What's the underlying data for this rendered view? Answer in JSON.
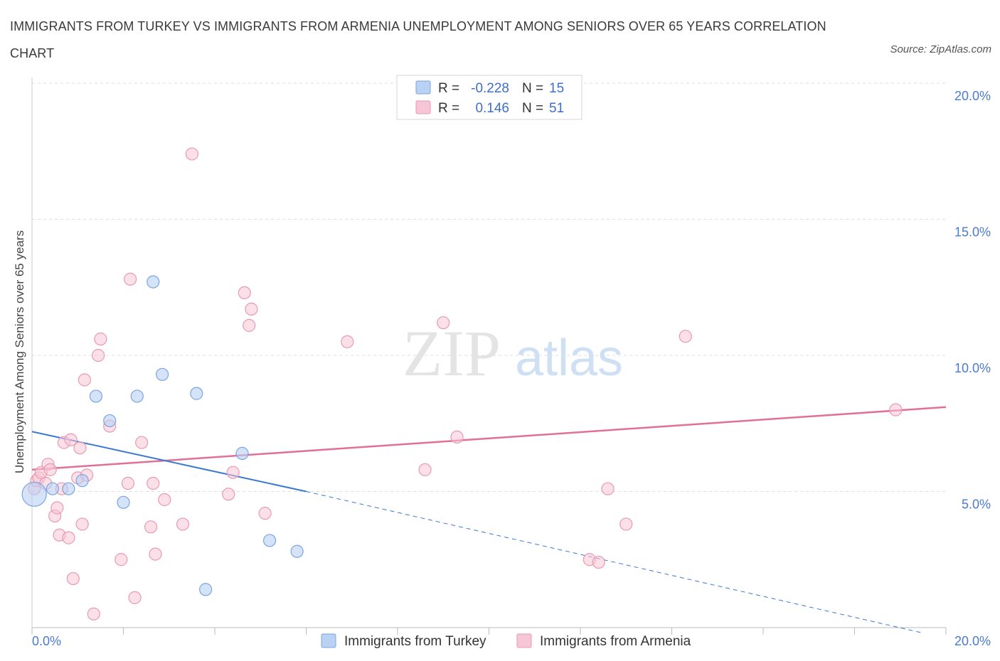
{
  "title": "IMMIGRANTS FROM TURKEY VS IMMIGRANTS FROM ARMENIA UNEMPLOYMENT AMONG SENIORS OVER 65 YEARS CORRELATION CHART",
  "source": "Source: ZipAtlas.com",
  "watermark": {
    "zip": "ZIP",
    "atlas": "atlas"
  },
  "legend_top": [
    {
      "r_label": "R =",
      "r_value": "-0.228",
      "n_label": "N =",
      "n_value": "15"
    },
    {
      "r_label": "R =",
      "r_value": "0.146",
      "n_label": "N =",
      "n_value": "51"
    }
  ],
  "legend_bottom": [
    "Immigrants from Turkey",
    "Immigrants from Armenia"
  ],
  "colors": {
    "turkey_fill": "#b9d1f3",
    "turkey_stroke": "#7aa5e0",
    "turkey_line": "#3b78d0",
    "armenia_fill": "#f7c6d6",
    "armenia_stroke": "#e79ab4",
    "armenia_line": "#e07097",
    "axis_label": "#4a7bd0",
    "grid": "#dddddd"
  },
  "chart_data": {
    "type": "scatter",
    "title": "IMMIGRANTS FROM TURKEY VS IMMIGRANTS FROM ARMENIA UNEMPLOYMENT AMONG SENIORS OVER 65 YEARS CORRELATION CHART",
    "xlabel": "",
    "ylabel": "Unemployment Among Seniors over 65 years",
    "xlim": [
      0,
      20
    ],
    "ylim": [
      0,
      20
    ],
    "x_tick_labels": [
      "0.0%",
      "20.0%"
    ],
    "y_ticks": [
      5,
      10,
      15,
      20
    ],
    "y_tick_labels": [
      "5.0%",
      "10.0%",
      "15.0%",
      "20.0%"
    ],
    "series": [
      {
        "name": "Immigrants from Turkey",
        "R": -0.228,
        "N": 15,
        "trend": {
          "x0": 0,
          "y0": 7.2,
          "x1": 6.0,
          "y1": 5.0,
          "dash_to_x": 19.5,
          "dash_to_y": -0.2
        },
        "points": [
          {
            "x": 0.05,
            "y": 4.9,
            "big": true
          },
          {
            "x": 0.45,
            "y": 5.1
          },
          {
            "x": 0.8,
            "y": 5.1
          },
          {
            "x": 1.1,
            "y": 5.4
          },
          {
            "x": 1.4,
            "y": 8.5
          },
          {
            "x": 1.7,
            "y": 7.6
          },
          {
            "x": 2.0,
            "y": 4.6
          },
          {
            "x": 2.3,
            "y": 8.5
          },
          {
            "x": 2.65,
            "y": 12.7
          },
          {
            "x": 2.85,
            "y": 9.3
          },
          {
            "x": 3.6,
            "y": 8.6
          },
          {
            "x": 3.8,
            "y": 1.4
          },
          {
            "x": 4.6,
            "y": 6.4
          },
          {
            "x": 5.2,
            "y": 3.2
          },
          {
            "x": 5.8,
            "y": 2.8
          }
        ]
      },
      {
        "name": "Immigrants from Armenia",
        "R": 0.146,
        "N": 51,
        "trend": {
          "x0": 0,
          "y0": 5.8,
          "x1": 20,
          "y1": 8.1
        },
        "points": [
          {
            "x": 0.05,
            "y": 5.1
          },
          {
            "x": 0.1,
            "y": 5.4
          },
          {
            "x": 0.15,
            "y": 5.5
          },
          {
            "x": 0.2,
            "y": 5.7
          },
          {
            "x": 0.3,
            "y": 5.3
          },
          {
            "x": 0.35,
            "y": 6.0
          },
          {
            "x": 0.4,
            "y": 5.8
          },
          {
            "x": 0.5,
            "y": 4.1
          },
          {
            "x": 0.55,
            "y": 4.4
          },
          {
            "x": 0.6,
            "y": 3.4
          },
          {
            "x": 0.65,
            "y": 5.1
          },
          {
            "x": 0.7,
            "y": 6.8
          },
          {
            "x": 0.8,
            "y": 3.3
          },
          {
            "x": 0.85,
            "y": 6.9
          },
          {
            "x": 0.9,
            "y": 1.8
          },
          {
            "x": 1.0,
            "y": 5.5
          },
          {
            "x": 1.05,
            "y": 6.6
          },
          {
            "x": 1.1,
            "y": 3.8
          },
          {
            "x": 1.15,
            "y": 9.1
          },
          {
            "x": 1.2,
            "y": 5.6
          },
          {
            "x": 1.35,
            "y": 0.5
          },
          {
            "x": 1.45,
            "y": 10.0
          },
          {
            "x": 1.5,
            "y": 10.6
          },
          {
            "x": 1.7,
            "y": 7.4
          },
          {
            "x": 1.95,
            "y": 2.5
          },
          {
            "x": 2.1,
            "y": 5.3
          },
          {
            "x": 2.15,
            "y": 12.8
          },
          {
            "x": 2.25,
            "y": 1.1
          },
          {
            "x": 2.4,
            "y": 6.8
          },
          {
            "x": 2.6,
            "y": 3.7
          },
          {
            "x": 2.65,
            "y": 5.3
          },
          {
            "x": 2.7,
            "y": 2.7
          },
          {
            "x": 2.9,
            "y": 4.7
          },
          {
            "x": 3.3,
            "y": 3.8
          },
          {
            "x": 3.5,
            "y": 17.4
          },
          {
            "x": 4.3,
            "y": 4.9
          },
          {
            "x": 4.4,
            "y": 5.7
          },
          {
            "x": 4.65,
            "y": 12.3
          },
          {
            "x": 4.75,
            "y": 11.1
          },
          {
            "x": 4.8,
            "y": 11.7
          },
          {
            "x": 5.1,
            "y": 4.2
          },
          {
            "x": 6.9,
            "y": 10.5
          },
          {
            "x": 8.6,
            "y": 5.8
          },
          {
            "x": 9.0,
            "y": 11.2
          },
          {
            "x": 9.3,
            "y": 7.0
          },
          {
            "x": 12.2,
            "y": 2.5
          },
          {
            "x": 12.6,
            "y": 5.1
          },
          {
            "x": 12.4,
            "y": 2.4
          },
          {
            "x": 13.0,
            "y": 3.8
          },
          {
            "x": 14.3,
            "y": 10.7
          },
          {
            "x": 18.9,
            "y": 8.0
          }
        ]
      }
    ]
  }
}
